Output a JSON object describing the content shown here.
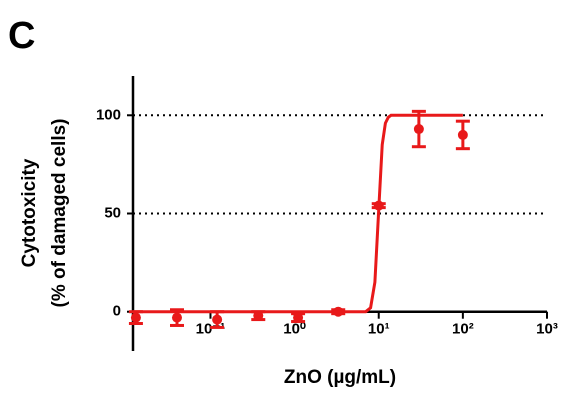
{
  "chart_data": {
    "type": "scatter",
    "panel_label": "C",
    "xlabel": "ZnO (µg/mL)",
    "ylabel": [
      "Cytotoxicity",
      "(% of damaged cells)"
    ],
    "xscale": "log",
    "xlim": [
      0.012,
      1000
    ],
    "ylim": [
      -20,
      120
    ],
    "xticks": [
      {
        "value": 0.1,
        "label": "10⁻¹"
      },
      {
        "value": 1,
        "label": "10⁰"
      },
      {
        "value": 10,
        "label": "10¹"
      },
      {
        "value": 100,
        "label": "10²"
      },
      {
        "value": 1000,
        "label": "10³"
      }
    ],
    "yticks": [
      0,
      50,
      100
    ],
    "grid": true,
    "series": [
      {
        "mode": "points",
        "color": "#e8191a",
        "x": [
          0.013,
          0.04,
          0.12,
          0.37,
          1.1,
          3.3,
          10,
          30,
          100
        ],
        "values": [
          -3,
          -3,
          -4,
          -2,
          -3,
          0,
          54,
          93,
          90
        ],
        "errors": [
          3,
          4,
          4,
          2,
          2,
          1,
          1,
          9,
          7
        ]
      },
      {
        "mode": "line",
        "color": "#e8191a",
        "x": [
          0.012,
          7,
          8,
          9,
          10,
          11,
          12,
          13,
          14,
          100
        ],
        "values": [
          0,
          0,
          2,
          15,
          52,
          85,
          96,
          99,
          100,
          100
        ]
      }
    ]
  }
}
